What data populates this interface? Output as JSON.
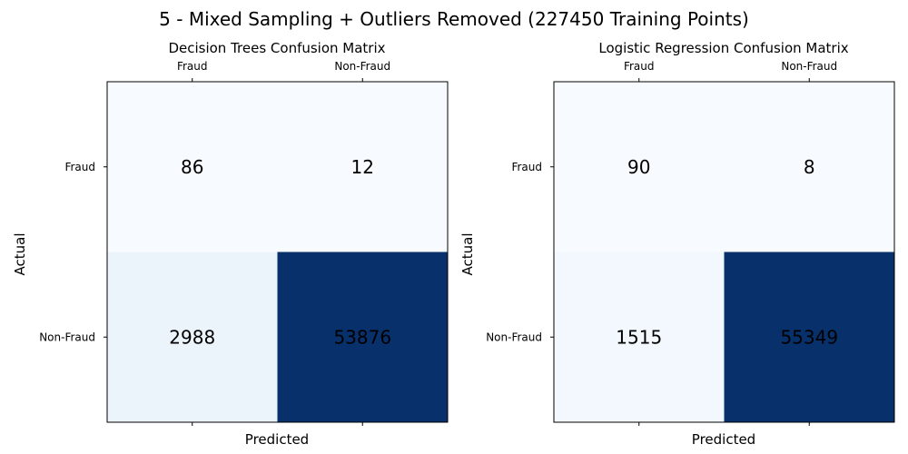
{
  "title": "5 - Mixed Sampling + Outliers Removed (227450 Training Points)",
  "chart_data": [
    {
      "type": "heatmap",
      "title": "Decision Trees Confusion Matrix",
      "xlabel": "Predicted",
      "ylabel": "Actual",
      "x_categories": [
        "Fraud",
        "Non-Fraud"
      ],
      "y_categories": [
        "Fraud",
        "Non-Fraud"
      ],
      "values": [
        [
          86,
          12
        ],
        [
          2988,
          53876
        ]
      ],
      "colormap": "Blues",
      "x_ticks_position": "top",
      "grid": false
    },
    {
      "type": "heatmap",
      "title": "Logistic Regression Confusion Matrix",
      "xlabel": "Predicted",
      "ylabel": "Actual",
      "x_categories": [
        "Fraud",
        "Non-Fraud"
      ],
      "y_categories": [
        "Fraud",
        "Non-Fraud"
      ],
      "values": [
        [
          90,
          8
        ],
        [
          1515,
          55349
        ]
      ],
      "colormap": "Blues",
      "x_ticks_position": "top",
      "grid": false
    }
  ]
}
